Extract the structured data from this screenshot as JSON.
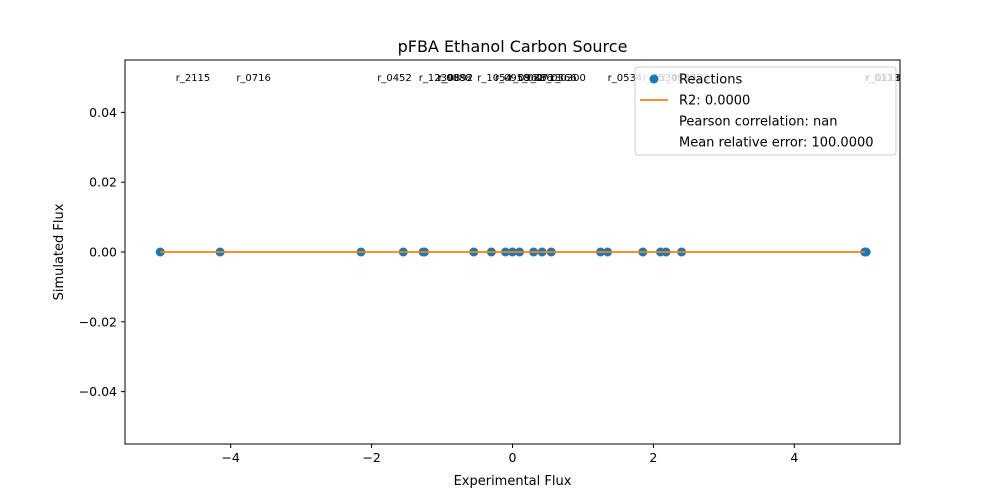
{
  "chart_data": {
    "type": "scatter",
    "title": "pFBA Ethanol Carbon Source",
    "xlabel": "Experimental Flux",
    "ylabel": "Simulated Flux",
    "xlim": [
      -5.5,
      5.5
    ],
    "ylim": [
      -0.055,
      0.055
    ],
    "x_ticks": [
      -4,
      -2,
      0,
      2,
      4
    ],
    "y_ticks": [
      -0.04,
      -0.02,
      0.0,
      0.02,
      0.04
    ],
    "x_tick_labels": [
      "−4",
      "−2",
      "0",
      "2",
      "4"
    ],
    "y_tick_labels": [
      "−0.04",
      "−0.02",
      "0.00",
      "0.02",
      "0.04"
    ],
    "grid": false,
    "legend_position": "top-right",
    "colors": {
      "scatter": "#1f77b4",
      "fit_line": "#ff7f0e"
    },
    "series": [
      {
        "name": "Reactions",
        "points": [
          {
            "x": -5.0,
            "y": 0
          },
          {
            "x": -4.15,
            "y": 0
          },
          {
            "x": -2.15,
            "y": 0
          },
          {
            "x": -1.55,
            "y": 0
          },
          {
            "x": -1.25,
            "y": 0
          },
          {
            "x": -1.27,
            "y": 0
          },
          {
            "x": -0.55,
            "y": 0
          },
          {
            "x": -0.3,
            "y": 0
          },
          {
            "x": -0.1,
            "y": 0
          },
          {
            "x": 0.0,
            "y": 0
          },
          {
            "x": 0.1,
            "y": 0
          },
          {
            "x": 0.3,
            "y": 0
          },
          {
            "x": 0.42,
            "y": 0
          },
          {
            "x": 0.55,
            "y": 0
          },
          {
            "x": 1.25,
            "y": 0
          },
          {
            "x": 1.35,
            "y": 0
          },
          {
            "x": 1.85,
            "y": 0
          },
          {
            "x": 2.1,
            "y": 0
          },
          {
            "x": 2.18,
            "y": 0
          },
          {
            "x": 2.4,
            "y": 0
          },
          {
            "x": 5.0,
            "y": 0
          },
          {
            "x": 5.02,
            "y": 0
          }
        ]
      },
      {
        "name": "R2: 0.0000",
        "type": "line",
        "x": [
          -5.0,
          5.0
        ],
        "y": [
          0,
          0
        ]
      }
    ],
    "annotations": [
      {
        "text": "r_2115",
        "x": -4.78
      },
      {
        "text": "r_0716",
        "x": -3.92
      },
      {
        "text": "r_0452",
        "x": -1.92
      },
      {
        "text": "r_1239",
        "x": -1.33
      },
      {
        "text": "r_0892",
        "x": -1.05
      },
      {
        "text": "r_0888",
        "x": -1.07
      },
      {
        "text": "r_1054",
        "x": -0.5
      },
      {
        "text": "r_0958",
        "x": -0.25
      },
      {
        "text": "r_0962",
        "x": -0.05
      },
      {
        "text": "r_0886",
        "x": 0.08
      },
      {
        "text": "r_0713",
        "x": 0.2
      },
      {
        "text": "r_0366",
        "x": 0.42
      },
      {
        "text": "r_0300",
        "x": 0.55
      },
      {
        "text": "r_0534",
        "x": 1.35
      },
      {
        "text": "r_0534",
        "x": 1.85
      },
      {
        "text": "r_0888",
        "x": 2.12
      },
      {
        "text": "r_1023",
        "x": 2.3
      },
      {
        "text": "r_0118",
        "x": 5.02
      },
      {
        "text": "r_0113",
        "x": 5.0
      }
    ],
    "legend": {
      "entries": [
        "Reactions",
        "R2: 0.0000",
        "Pearson correlation: nan",
        "Mean relative error: 100.0000"
      ]
    }
  }
}
